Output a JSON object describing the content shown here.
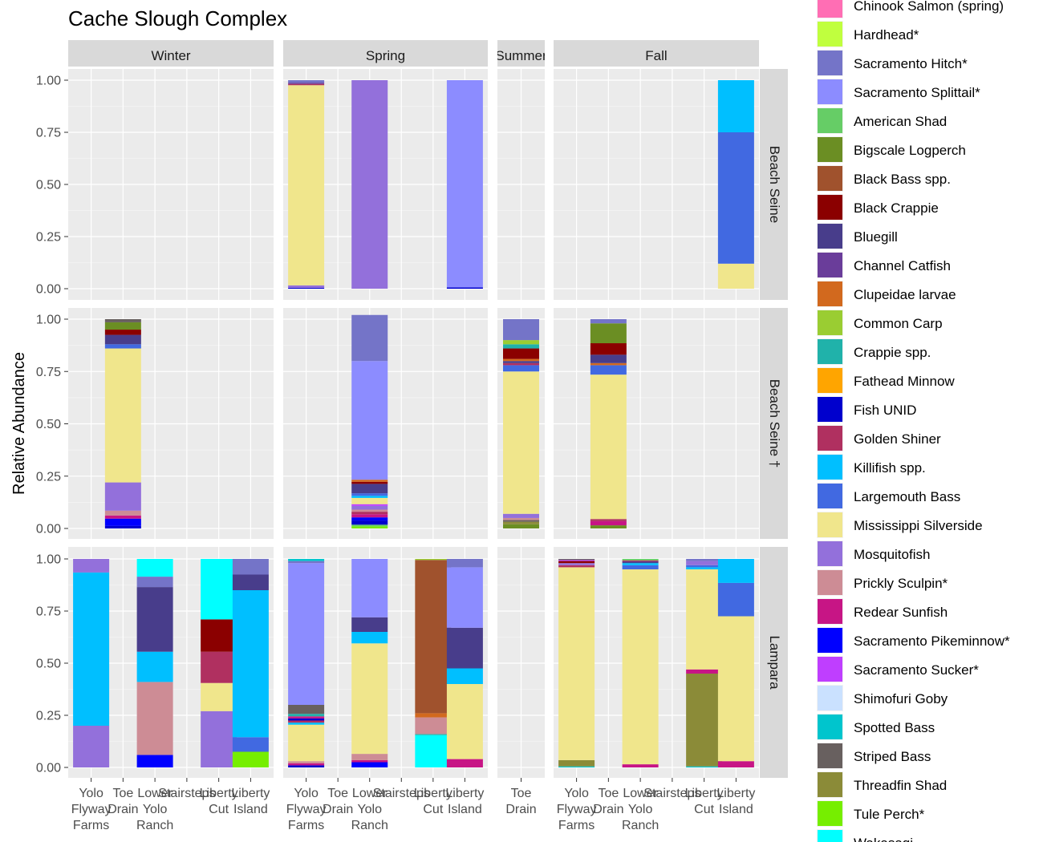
{
  "chart_data": {
    "type": "bar",
    "stacked": true,
    "title": "Cache Slough Complex",
    "xlabel": "",
    "ylabel": "Relative Abundance",
    "ylim": [
      0,
      1
    ],
    "yticks": [
      "0.00",
      "0.25",
      "0.50",
      "0.75",
      "1.00"
    ],
    "grid": true,
    "legend_position": "right",
    "seasons": [
      "Winter",
      "Spring",
      "Summer",
      "Fall"
    ],
    "methods": [
      "Beach Seine",
      "Beach Seine †",
      "Lampara"
    ],
    "season_sites": {
      "Winter": [
        "Yolo Flyway Farms",
        "Toe Drain",
        "Lower Yolo Ranch",
        "Stairsteps",
        "Liberty Cut",
        "Liberty Island"
      ],
      "Spring": [
        "Yolo Flyway Farms",
        "Toe Drain",
        "Lower Yolo Ranch",
        "Stairsteps",
        "Liberty Cut",
        "Liberty Island"
      ],
      "Summer": [
        "Toe Drain"
      ],
      "Fall": [
        "Yolo Flyway Farms",
        "Toe Drain",
        "Lower Yolo Ranch",
        "Stairsteps",
        "Liberty Cut",
        "Liberty Island"
      ]
    },
    "x_tick_labels": {
      "Yolo Flyway Farms": [
        "Yolo",
        "Flyway",
        "Farms"
      ],
      "Toe Drain": [
        "Toe",
        "Drain"
      ],
      "Lower Yolo Ranch": [
        "Lower",
        "Yolo",
        "Ranch"
      ],
      "Stairsteps": [
        "Stairsteps"
      ],
      "Liberty Cut": [
        "Liberty",
        "Cut"
      ],
      "Liberty Island": [
        "Liberty",
        "Island"
      ]
    },
    "legend": [
      {
        "name": "Chinook Salmon (spring)",
        "color": "#ff6eb4"
      },
      {
        "name": "Hardhead*",
        "color": "#c0ff3e"
      },
      {
        "name": "Sacramento Hitch*",
        "color": "#7474c8"
      },
      {
        "name": "Sacramento Splittail*",
        "color": "#8c8cff"
      },
      {
        "name": "American Shad",
        "color": "#66cd66"
      },
      {
        "name": "Bigscale Logperch",
        "color": "#6b8e23"
      },
      {
        "name": "Black Bass spp.",
        "color": "#a0522d"
      },
      {
        "name": "Black Crappie",
        "color": "#8b0000"
      },
      {
        "name": "Bluegill",
        "color": "#483d8b"
      },
      {
        "name": "Channel Catfish",
        "color": "#6a3d9a"
      },
      {
        "name": "Clupeidae larvae",
        "color": "#d2691e"
      },
      {
        "name": "Common Carp",
        "color": "#9acd32"
      },
      {
        "name": "Crappie spp.",
        "color": "#20b2aa"
      },
      {
        "name": "Fathead Minnow",
        "color": "#ffa500"
      },
      {
        "name": "Fish UNID",
        "color": "#0000cd"
      },
      {
        "name": "Golden Shiner",
        "color": "#b03060"
      },
      {
        "name": "Killifish spp.",
        "color": "#00bfff"
      },
      {
        "name": "Largemouth Bass",
        "color": "#4169e1"
      },
      {
        "name": "Mississippi Silverside",
        "color": "#f0e68c"
      },
      {
        "name": "Mosquitofish",
        "color": "#9370db"
      },
      {
        "name": "Prickly Sculpin*",
        "color": "#cd8c95"
      },
      {
        "name": "Redear Sunfish",
        "color": "#c71585"
      },
      {
        "name": "Sacramento Pikeminnow*",
        "color": "#0000ff"
      },
      {
        "name": "Sacramento Sucker*",
        "color": "#bf3eff"
      },
      {
        "name": "Shimofuri Goby",
        "color": "#cae1ff"
      },
      {
        "name": "Spotted Bass",
        "color": "#00c5cd"
      },
      {
        "name": "Striped Bass",
        "color": "#68605f"
      },
      {
        "name": "Threadfin Shad",
        "color": "#8b8b38"
      },
      {
        "name": "Tule Perch*",
        "color": "#76ee00"
      },
      {
        "name": "Wakasagi",
        "color": "#00ffff"
      }
    ],
    "bars": [
      {
        "method": "Beach Seine",
        "season": "Spring",
        "site": "Yolo Flyway Farms",
        "segments": [
          [
            "Fish UNID",
            0.004
          ],
          [
            "Mosquitofish",
            0.012
          ],
          [
            "Mississippi Silverside",
            0.96
          ],
          [
            "Golden Shiner",
            0.006
          ],
          [
            "Channel Catfish",
            0.006
          ],
          [
            "Sacramento Hitch*",
            0.012
          ]
        ]
      },
      {
        "method": "Beach Seine",
        "season": "Spring",
        "site": "Lower Yolo Ranch",
        "segments": [
          [
            "Mosquitofish",
            1.0
          ]
        ]
      },
      {
        "method": "Beach Seine",
        "season": "Spring",
        "site": "Liberty Island",
        "segments": [
          [
            "Fish UNID",
            0.006
          ],
          [
            "Sacramento Splittail*",
            0.994
          ]
        ]
      },
      {
        "method": "Beach Seine",
        "season": "Fall",
        "site": "Liberty Island",
        "segments": [
          [
            "Mississippi Silverside",
            0.12
          ],
          [
            "Largemouth Bass",
            0.63
          ],
          [
            "Killifish spp.",
            0.25
          ]
        ]
      },
      {
        "method": "Beach Seine †",
        "season": "Winter",
        "site": "Toe Drain",
        "segments": [
          [
            "Fish UNID",
            0.012
          ],
          [
            "Sacramento Pikeminnow*",
            0.035
          ],
          [
            "Redear Sunfish",
            0.015
          ],
          [
            "Prickly Sculpin*",
            0.023
          ],
          [
            "Mosquitofish",
            0.135
          ],
          [
            "Mississippi Silverside",
            0.64
          ],
          [
            "Largemouth Bass",
            0.02
          ],
          [
            "Bluegill",
            0.045
          ],
          [
            "Black Crappie",
            0.025
          ],
          [
            "Bigscale Logperch",
            0.035
          ],
          [
            "Striped Bass",
            0.015
          ]
        ]
      },
      {
        "method": "Beach Seine †",
        "season": "Spring",
        "site": "Lower Yolo Ranch",
        "segments": [
          [
            "Tule Perch*",
            0.01
          ],
          [
            "American Shad",
            0.008
          ],
          [
            "Fish UNID",
            0.02
          ],
          [
            "Sacramento Pikeminnow*",
            0.015
          ],
          [
            "Redear Sunfish",
            0.015
          ],
          [
            "Golden Shiner",
            0.012
          ],
          [
            "Prickly Sculpin*",
            0.01
          ],
          [
            "Mosquitofish",
            0.018
          ],
          [
            "Sacramento Sucker*",
            0.008
          ],
          [
            "Mississippi Silverside",
            0.03
          ],
          [
            "Killifish spp.",
            0.01
          ],
          [
            "Largemouth Bass",
            0.012
          ],
          [
            "Bluegill",
            0.045
          ],
          [
            "Black Crappie",
            0.01
          ],
          [
            "Clupeidae larvae",
            0.01
          ],
          [
            "Sacramento Splittail*",
            0.567
          ],
          [
            "Sacramento Hitch*",
            0.22
          ]
        ]
      },
      {
        "method": "Beach Seine †",
        "season": "Summer",
        "site": "Toe Drain",
        "segments": [
          [
            "Bigscale Logperch",
            0.02
          ],
          [
            "Threadfin Shad",
            0.012
          ],
          [
            "Striped Bass",
            0.008
          ],
          [
            "Prickly Sculpin*",
            0.01
          ],
          [
            "Mosquitofish",
            0.02
          ],
          [
            "Mississippi Silverside",
            0.68
          ],
          [
            "Largemouth Bass",
            0.03
          ],
          [
            "Golden Shiner",
            0.01
          ],
          [
            "Bluegill",
            0.01
          ],
          [
            "Clupeidae larvae",
            0.01
          ],
          [
            "Black Crappie",
            0.05
          ],
          [
            "Crappie spp.",
            0.02
          ],
          [
            "Common Carp",
            0.02
          ],
          [
            "Sacramento Hitch*",
            0.1
          ]
        ]
      },
      {
        "method": "Beach Seine †",
        "season": "Fall",
        "site": "Toe Drain",
        "segments": [
          [
            "Bigscale Logperch",
            0.015
          ],
          [
            "Redear Sunfish",
            0.02
          ],
          [
            "Golden Shiner",
            0.01
          ],
          [
            "Mississippi Silverside",
            0.69
          ],
          [
            "Largemouth Bass",
            0.045
          ],
          [
            "Clupeidae larvae",
            0.01
          ],
          [
            "Bluegill",
            0.04
          ],
          [
            "Black Crappie",
            0.055
          ],
          [
            "Bigscale Logperch",
            0.095
          ],
          [
            "Sacramento Hitch*",
            0.02
          ]
        ]
      },
      {
        "method": "Lampara",
        "season": "Winter",
        "site": "Yolo Flyway Farms",
        "segments": [
          [
            "Mosquitofish",
            0.2
          ],
          [
            "Killifish spp.",
            0.735
          ],
          [
            "Mosquitofish",
            0.065
          ]
        ]
      },
      {
        "method": "Lampara",
        "season": "Winter",
        "site": "Lower Yolo Ranch",
        "segments": [
          [
            "Sacramento Pikeminnow*",
            0.06
          ],
          [
            "Prickly Sculpin*",
            0.35
          ],
          [
            "Killifish spp.",
            0.145
          ],
          [
            "Bluegill",
            0.31
          ],
          [
            "Sacramento Hitch*",
            0.05
          ],
          [
            "Wakasagi",
            0.085
          ]
        ]
      },
      {
        "method": "Lampara",
        "season": "Winter",
        "site": "Liberty Cut",
        "segments": [
          [
            "Mosquitofish",
            0.27
          ],
          [
            "Mississippi Silverside",
            0.135
          ],
          [
            "Golden Shiner",
            0.15
          ],
          [
            "Black Crappie",
            0.155
          ],
          [
            "Wakasagi",
            0.29
          ]
        ]
      },
      {
        "method": "Lampara",
        "season": "Winter",
        "site": "Liberty Island",
        "segments": [
          [
            "Tule Perch*",
            0.075
          ],
          [
            "Largemouth Bass",
            0.07
          ],
          [
            "Killifish spp.",
            0.705
          ],
          [
            "Bluegill",
            0.075
          ],
          [
            "Sacramento Hitch*",
            0.075
          ]
        ]
      },
      {
        "method": "Lampara",
        "season": "Spring",
        "site": "Yolo Flyway Farms",
        "segments": [
          [
            "Fish UNID",
            0.01
          ],
          [
            "Redear Sunfish",
            0.01
          ],
          [
            "Prickly Sculpin*",
            0.01
          ],
          [
            "Mississippi Silverside",
            0.175
          ],
          [
            "Killifish spp.",
            0.01
          ],
          [
            "Golden Shiner",
            0.01
          ],
          [
            "Fish UNID",
            0.01
          ],
          [
            "Redear Sunfish",
            0.01
          ],
          [
            "Crappie spp.",
            0.012
          ],
          [
            "Striped Bass",
            0.043
          ],
          [
            "Sacramento Splittail*",
            0.68
          ],
          [
            "Sacramento Hitch*",
            0.01
          ],
          [
            "Spotted Bass",
            0.01
          ]
        ]
      },
      {
        "method": "Lampara",
        "season": "Spring",
        "site": "Lower Yolo Ranch",
        "segments": [
          [
            "Sacramento Pikeminnow*",
            0.025
          ],
          [
            "Redear Sunfish",
            0.01
          ],
          [
            "Prickly Sculpin*",
            0.03
          ],
          [
            "Mississippi Silverside",
            0.53
          ],
          [
            "Killifish spp.",
            0.055
          ],
          [
            "Bluegill",
            0.07
          ],
          [
            "Sacramento Splittail*",
            0.28
          ]
        ]
      },
      {
        "method": "Lampara",
        "season": "Spring",
        "site": "Liberty Cut",
        "segments": [
          [
            "Wakasagi",
            0.155
          ],
          [
            "Crappie spp.",
            0.005
          ],
          [
            "Prickly Sculpin*",
            0.08
          ],
          [
            "Clupeidae larvae",
            0.02
          ],
          [
            "Black Bass spp.",
            0.735
          ],
          [
            "Common Carp",
            0.005
          ]
        ]
      },
      {
        "method": "Lampara",
        "season": "Spring",
        "site": "Liberty Island",
        "segments": [
          [
            "Redear Sunfish",
            0.04
          ],
          [
            "Mississippi Silverside",
            0.36
          ],
          [
            "Killifish spp.",
            0.075
          ],
          [
            "Bluegill",
            0.195
          ],
          [
            "Sacramento Splittail*",
            0.29
          ],
          [
            "Sacramento Hitch*",
            0.04
          ]
        ]
      },
      {
        "method": "Lampara",
        "season": "Fall",
        "site": "Yolo Flyway Farms",
        "segments": [
          [
            "Spotted Bass",
            0.005
          ],
          [
            "Threadfin Shad",
            0.03
          ],
          [
            "Mississippi Silverside",
            0.925
          ],
          [
            "Golden Shiner",
            0.01
          ],
          [
            "Mosquitofish",
            0.01
          ],
          [
            "Black Crappie",
            0.01
          ],
          [
            "Sacramento Sucker*",
            0.005
          ],
          [
            "Striped Bass",
            0.005
          ]
        ]
      },
      {
        "method": "Lampara",
        "season": "Fall",
        "site": "Lower Yolo Ranch",
        "segments": [
          [
            "Redear Sunfish",
            0.015
          ],
          [
            "Mississippi Silverside",
            0.935
          ],
          [
            "Largemouth Bass",
            0.02
          ],
          [
            "Killifish spp.",
            0.01
          ],
          [
            "Bluegill",
            0.008
          ],
          [
            "Golden Shiner",
            0.005
          ],
          [
            "American Shad",
            0.007
          ]
        ]
      },
      {
        "method": "Lampara",
        "season": "Fall",
        "site": "Liberty Cut",
        "segments": [
          [
            "Spotted Bass",
            0.005
          ],
          [
            "Threadfin Shad",
            0.445
          ],
          [
            "Redear Sunfish",
            0.02
          ],
          [
            "Mississippi Silverside",
            0.48
          ],
          [
            "Killifish spp.",
            0.01
          ],
          [
            "Largemouth Bass",
            0.01
          ],
          [
            "Mosquitofish",
            0.02
          ],
          [
            "Sacramento Hitch*",
            0.01
          ]
        ]
      },
      {
        "method": "Lampara",
        "season": "Fall",
        "site": "Liberty Island",
        "segments": [
          [
            "Redear Sunfish",
            0.03
          ],
          [
            "Mississippi Silverside",
            0.695
          ],
          [
            "Largemouth Bass",
            0.16
          ],
          [
            "Killifish spp.",
            0.115
          ]
        ]
      }
    ]
  }
}
